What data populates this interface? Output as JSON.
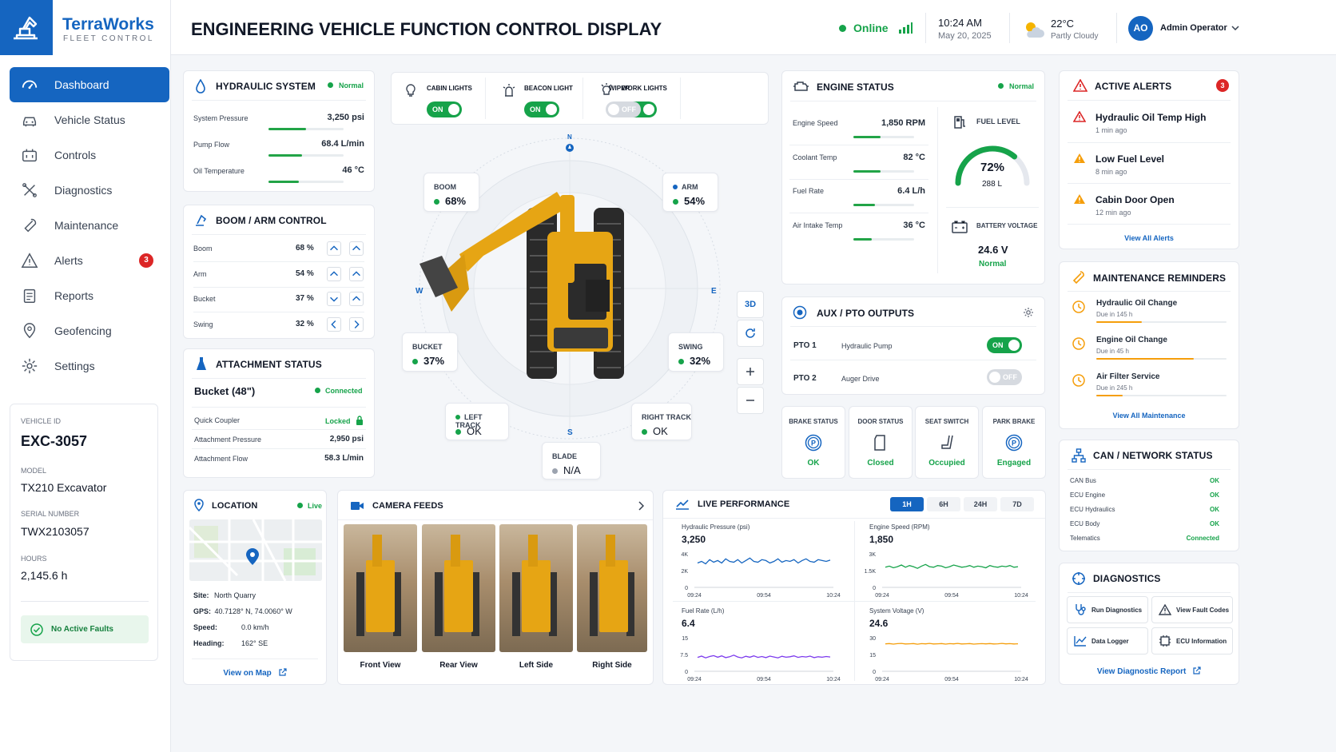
{
  "brand": {
    "name": "TerraWorks",
    "sub": "FLEET CONTROL"
  },
  "header": {
    "title": "ENGINEERING VEHICLE FUNCTION CONTROL DISPLAY",
    "status": "Online",
    "time": "10:24 AM",
    "date": "May 20, 2025",
    "temp": "22°C",
    "weather": "Partly Cloudy",
    "avatar": "AO",
    "user": "Admin Operator"
  },
  "nav": [
    {
      "label": "Dashboard"
    },
    {
      "label": "Vehicle Status"
    },
    {
      "label": "Controls"
    },
    {
      "label": "Diagnostics"
    },
    {
      "label": "Maintenance"
    },
    {
      "label": "Alerts",
      "badge": "3"
    },
    {
      "label": "Reports"
    },
    {
      "label": "Geofencing"
    },
    {
      "label": "Settings"
    }
  ],
  "vehicle": {
    "id_label": "VEHICLE ID",
    "id": "EXC-3057",
    "model_label": "MODEL",
    "model": "TX210 Excavator",
    "serial_label": "SERIAL NUMBER",
    "serial": "TWX2103057",
    "hours_label": "HOURS",
    "hours": "2,145.6 h",
    "faults": "No Active Faults"
  },
  "hydraulic": {
    "title": "HYDRAULIC SYSTEM",
    "status": "Normal",
    "rows": [
      {
        "label": "System Pressure",
        "value": "3,250 psi",
        "level": 0.5
      },
      {
        "label": "Pump Flow",
        "value": "68.4 L/min",
        "level": 0.45
      },
      {
        "label": "Oil Temperature",
        "value": "46 °C",
        "level": 0.4
      }
    ]
  },
  "boom_arm": {
    "title": "BOOM / ARM CONTROL",
    "rows": [
      {
        "label": "Boom",
        "value": "68 %"
      },
      {
        "label": "Arm",
        "value": "54 %"
      },
      {
        "label": "Bucket",
        "value": "37 %"
      },
      {
        "label": "Swing",
        "value": "32 %"
      }
    ]
  },
  "attachment": {
    "title": "ATTACHMENT STATUS",
    "name": "Bucket (48\")",
    "status": "Connected",
    "rows": [
      {
        "label": "Quick Coupler",
        "value": "Locked"
      },
      {
        "label": "Attachment Pressure",
        "value": "2,950 psi"
      },
      {
        "label": "Attachment Flow",
        "value": "58.3 L/min"
      }
    ]
  },
  "lights": [
    {
      "label": "CABIN LIGHTS",
      "state": "ON"
    },
    {
      "label": "BEACON LIGHT",
      "state": "ON"
    },
    {
      "label": "WORK LIGHTS",
      "state": "ON"
    },
    {
      "label": "WIPER",
      "state": "OFF"
    }
  ],
  "view3d": {
    "compass": {
      "n": "N",
      "s": "S",
      "e": "E",
      "w": "W"
    },
    "boom": {
      "label": "BOOM",
      "value": "68%"
    },
    "arm": {
      "label": "ARM",
      "value": "54%"
    },
    "bucket": {
      "label": "BUCKET",
      "value": "37%"
    },
    "swing": {
      "label": "SWING",
      "value": "32%"
    },
    "left_track": {
      "label": "LEFT TRACK",
      "value": "OK"
    },
    "right_track": {
      "label": "RIGHT TRACK",
      "value": "OK"
    },
    "blade": {
      "label": "BLADE",
      "value": "N/A"
    },
    "btn3d": "3D"
  },
  "engine": {
    "title": "ENGINE STATUS",
    "status": "Normal",
    "rows": [
      {
        "label": "Engine Speed",
        "value": "1,850 RPM",
        "level": 0.45
      },
      {
        "label": "Coolant Temp",
        "value": "82 °C",
        "level": 0.45
      },
      {
        "label": "Fuel Rate",
        "value": "6.4 L/h",
        "level": 0.35
      },
      {
        "label": "Air Intake Temp",
        "value": "36 °C",
        "level": 0.3
      }
    ],
    "fuel_label": "FUEL LEVEL",
    "fuel_pct": "72%",
    "fuel_liters": "288 L",
    "fuel_level": 0.72,
    "battery_label": "BATTERY VOLTAGE",
    "battery": "24.6 V",
    "battery_status": "Normal"
  },
  "aux": {
    "title": "AUX / PTO OUTPUTS",
    "rows": [
      {
        "label": "PTO 1",
        "name": "Hydraulic Pump",
        "state": "ON"
      },
      {
        "label": "PTO 2",
        "name": "Auger Drive",
        "state": "OFF"
      }
    ]
  },
  "body_status": [
    {
      "label": "BRAKE STATUS",
      "value": "OK"
    },
    {
      "label": "DOOR STATUS",
      "value": "Closed"
    },
    {
      "label": "SEAT SWITCH",
      "value": "Occupied"
    },
    {
      "label": "PARK BRAKE",
      "value": "Engaged"
    }
  ],
  "alerts": {
    "title": "ACTIVE ALERTS",
    "count": "3",
    "items": [
      {
        "title": "Hydraulic Oil Temp High",
        "time": "1 min ago"
      },
      {
        "title": "Low Fuel Level",
        "time": "8 min ago"
      },
      {
        "title": "Cabin Door Open",
        "time": "12 min ago"
      }
    ],
    "link": "View All Alerts",
    "colors": {
      "critical": "#dc2626",
      "warning": "#f59e0b"
    }
  },
  "maintenance": {
    "title": "MAINTENANCE REMINDERS",
    "items": [
      {
        "title": "Hydraulic Oil Change",
        "due": "Due in 145 h",
        "progress": 0.35
      },
      {
        "title": "Engine Oil Change",
        "due": "Due in 45 h",
        "progress": 0.75
      },
      {
        "title": "Air Filter Service",
        "due": "Due in 245 h",
        "progress": 0.2
      }
    ],
    "link": "View All Maintenance"
  },
  "can": {
    "title": "CAN / NETWORK STATUS",
    "rows": [
      {
        "label": "CAN Bus",
        "value": "OK"
      },
      {
        "label": "ECU Engine",
        "value": "OK"
      },
      {
        "label": "ECU Hydraulics",
        "value": "OK"
      },
      {
        "label": "ECU Body",
        "value": "OK"
      },
      {
        "label": "Telematics",
        "value": "Connected"
      }
    ]
  },
  "diagnostics": {
    "title": "DIAGNOSTICS",
    "buttons": [
      "Run Diagnostics",
      "View Fault Codes",
      "Data Logger",
      "ECU Information"
    ],
    "link": "View Diagnostic Report"
  },
  "location": {
    "title": "LOCATION",
    "status": "Live",
    "site_label": "Site:",
    "site": "North Quarry",
    "gps_label": "GPS:",
    "gps": "40.7128° N, 74.0060° W",
    "speed_label": "Speed:",
    "speed": "0.0 km/h",
    "heading_label": "Heading:",
    "heading": "162° SE",
    "link": "View on Map"
  },
  "camera": {
    "title": "CAMERA FEEDS",
    "feeds": [
      "Front View",
      "Rear View",
      "Left Side",
      "Right Side"
    ]
  },
  "performance": {
    "title": "LIVE PERFORMANCE",
    "ranges": [
      "1H",
      "6H",
      "24H",
      "7D"
    ],
    "charts": [
      {
        "title": "Hydraulic Pressure (psi)",
        "value": "3,250",
        "yticks": [
          "4K",
          "2K",
          "0"
        ],
        "xticks": [
          "09:24",
          "09:54",
          "10:24"
        ],
        "color": "#1565c0",
        "ymax": 4000,
        "values": [
          2900,
          3100,
          2800,
          3300,
          3000,
          3200,
          2900,
          3400,
          3100,
          3000,
          3300,
          2900,
          3200,
          3500,
          3100,
          3000,
          3300,
          3200,
          2900,
          3100,
          3400,
          3000,
          3200,
          3100,
          3300,
          2900,
          3200,
          3400,
          3100,
          3000,
          3300,
          3200,
          3100,
          3250
        ]
      },
      {
        "title": "Engine Speed (RPM)",
        "value": "1,850",
        "yticks": [
          "3K",
          "1.5K",
          "0"
        ],
        "xticks": [
          "09:24",
          "09:54",
          "10:24"
        ],
        "color": "#16a34a",
        "ymax": 3000,
        "values": [
          1800,
          1900,
          1750,
          1850,
          2000,
          1800,
          1950,
          1850,
          1700,
          1900,
          2050,
          1850,
          1800,
          1950,
          1900,
          1750,
          1850,
          2000,
          1900,
          1800,
          1850,
          1950,
          1800,
          1900,
          1850,
          1750,
          1950,
          1850,
          1800,
          1900,
          1850,
          1950,
          1800,
          1850
        ]
      },
      {
        "title": "Fuel Rate (L/h)",
        "value": "6.4",
        "yticks": [
          "15",
          "7.5",
          "0"
        ],
        "xticks": [
          "09:24",
          "09:54",
          "10:24"
        ],
        "color": "#7c3aed",
        "ymax": 15,
        "values": [
          6.2,
          6.8,
          6.0,
          6.6,
          7.0,
          6.3,
          6.9,
          6.1,
          6.5,
          7.2,
          6.4,
          6.0,
          6.7,
          6.3,
          6.9,
          6.2,
          6.6,
          6.1,
          6.8,
          6.4,
          6.0,
          6.7,
          6.3,
          6.5,
          6.9,
          6.2,
          6.6,
          6.4,
          6.8,
          6.1,
          6.5,
          6.3,
          6.6,
          6.4
        ]
      },
      {
        "title": "System Voltage (V)",
        "value": "24.6",
        "yticks": [
          "30",
          "15",
          "0"
        ],
        "xticks": [
          "09:24",
          "09:54",
          "10:24"
        ],
        "color": "#f59e0b",
        "ymax": 30,
        "values": [
          24.5,
          24.8,
          24.3,
          24.7,
          24.9,
          24.4,
          24.6,
          24.8,
          24.2,
          24.7,
          24.5,
          24.9,
          24.4,
          24.6,
          24.8,
          24.3,
          24.7,
          24.5,
          24.9,
          24.4,
          24.6,
          24.8,
          24.3,
          24.6,
          24.7,
          24.5,
          24.8,
          24.4,
          24.6,
          24.9,
          24.5,
          24.7,
          24.4,
          24.6
        ]
      }
    ]
  }
}
